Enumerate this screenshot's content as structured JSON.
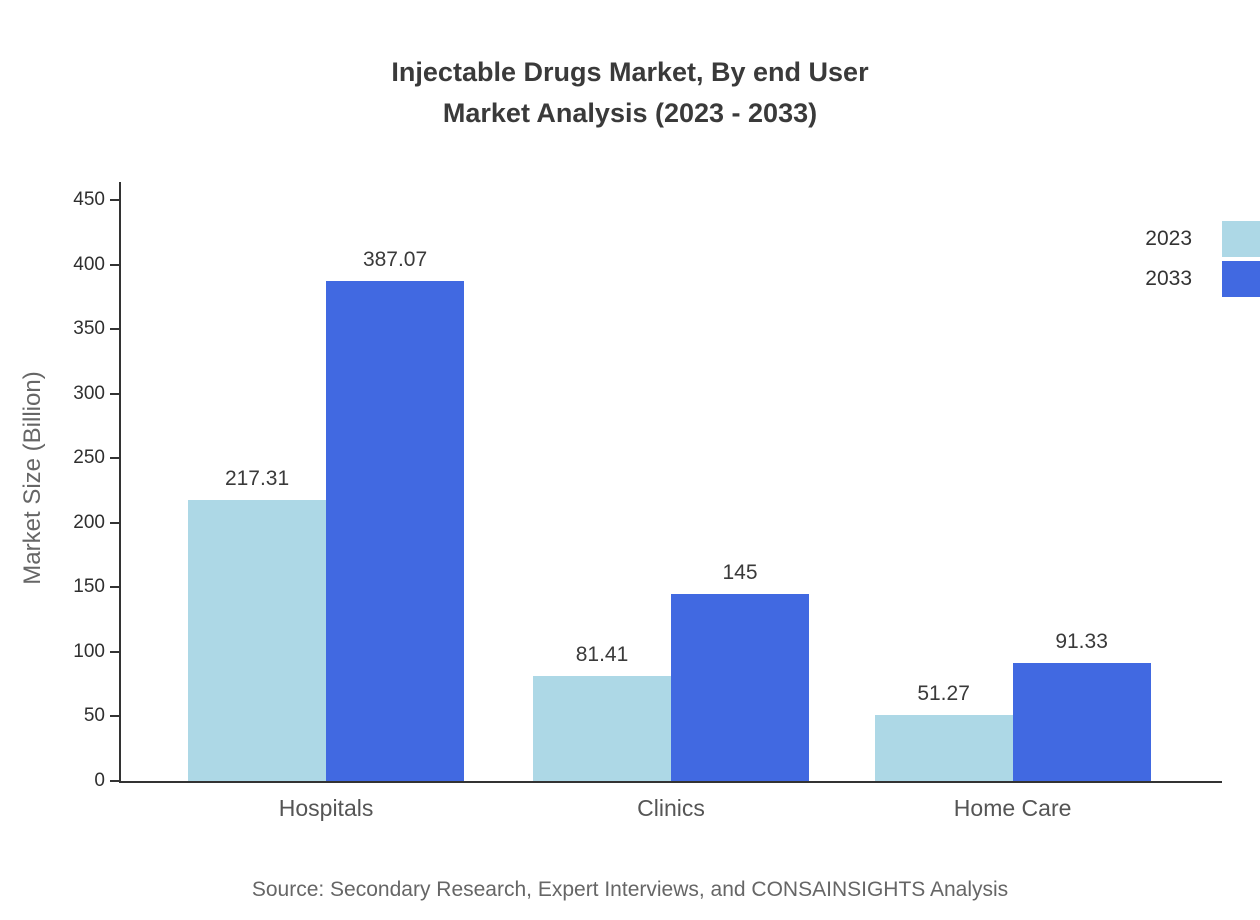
{
  "title": {
    "line1": "Injectable Drugs Market, By end User",
    "line2": "Market Analysis (2023 - 2033)"
  },
  "source": "Source: Secondary Research, Expert Interviews, and CONSAINSIGHTS Analysis",
  "chart_data": {
    "type": "bar",
    "categories": [
      "Hospitals",
      "Clinics",
      "Home Care"
    ],
    "series": [
      {
        "name": "2023",
        "color": "#add8e6",
        "values": [
          217.31,
          81.41,
          51.27
        ],
        "labels": [
          "217.31",
          "81.41",
          "51.27"
        ]
      },
      {
        "name": "2033",
        "color": "#4169e1",
        "values": [
          387.07,
          145,
          91.33
        ],
        "labels": [
          "387.07",
          "145",
          "91.33"
        ]
      }
    ],
    "title": "Injectable Drugs Market, By end User Market Analysis (2023 - 2033)",
    "xlabel": "",
    "ylabel": "Market Size (Billion)",
    "ylim": [
      0,
      450
    ],
    "ytick_step": 50,
    "grid": false,
    "legend_position": "top-right"
  }
}
